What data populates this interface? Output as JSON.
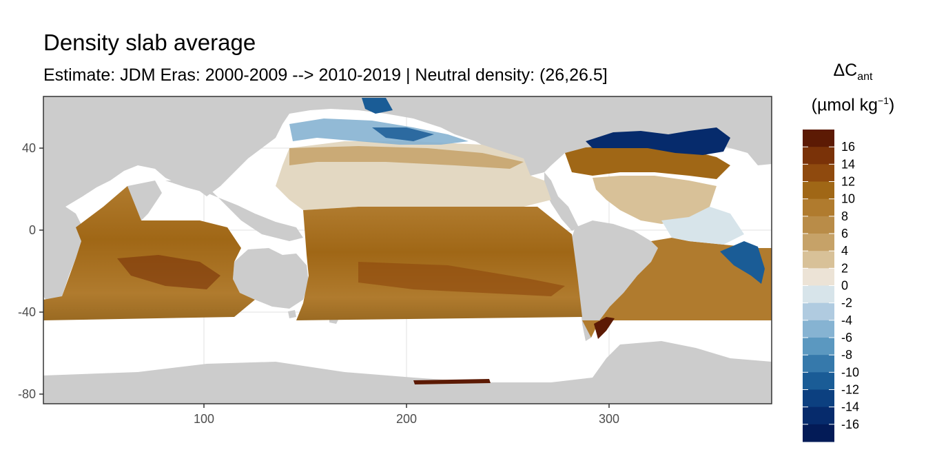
{
  "title": "Density slab average",
  "subtitle": "Estimate: JDM Eras: 2000-2009 --> 2010-2019 | Neutral density: (26,26.5]",
  "legend": {
    "delta": "ΔC",
    "sub": "ant",
    "unit_open": "(µmol kg",
    "unit_sup": "−1",
    "unit_close": ")",
    "labels": [
      "16",
      "14",
      "12",
      "10",
      "8",
      "6",
      "4",
      "2",
      "0",
      "-2",
      "-4",
      "-6",
      "-8",
      "-10",
      "-12",
      "-14",
      "-16"
    ],
    "colors": [
      "#5c1a04",
      "#7a3208",
      "#8f4a0e",
      "#a06716",
      "#b07b2e",
      "#b98c48",
      "#c6a268",
      "#d8c198",
      "#ece3d6",
      "#d7e4ea",
      "#b0cbe0",
      "#86b3d2",
      "#5b98c0",
      "#3679ab",
      "#1a5c96",
      "#0c4080",
      "#062b6c",
      "#031b57"
    ]
  },
  "map": {
    "x_ticks": [
      "100",
      "200",
      "300"
    ],
    "y_ticks": [
      "40",
      "0",
      "-40",
      "-80"
    ],
    "colors": {
      "land": "#cccccc",
      "no_data": "#ffffff",
      "grid": "#ebebeb",
      "panel_border": "#333333"
    }
  }
}
